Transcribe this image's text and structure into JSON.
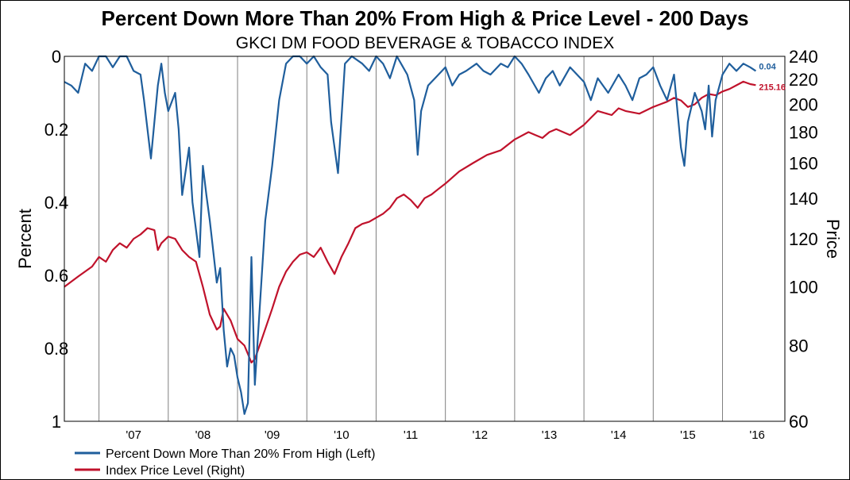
{
  "chart_data": {
    "type": "line",
    "title": "Percent Down More Than 20% From High & Price Level - 200 Days",
    "subtitle": "GKCI DM FOOD BEVERAGE & TOBACCO INDEX",
    "ylabel_left": "Percent",
    "ylabel_right": "Price",
    "left_axis": {
      "range": [
        0,
        1
      ],
      "inverted": true,
      "ticks": [
        "0",
        "0.2",
        "0.4",
        "0.6",
        "0.8",
        "1"
      ]
    },
    "right_axis": {
      "range": [
        60,
        240
      ],
      "scale": "log",
      "ticks": [
        "60",
        "80",
        "100",
        "120",
        "140",
        "160",
        "180",
        "200",
        "220",
        "240"
      ]
    },
    "x_ticks": [
      "'07",
      "'08",
      "'09",
      "'10",
      "'11",
      "'12",
      "'13",
      "'14",
      "'15",
      "'16"
    ],
    "x_range": [
      2006.5,
      2016.9
    ],
    "grid": {
      "vertical": true,
      "horizontal": false
    },
    "legend_position": "bottom-left",
    "series": [
      {
        "name": "Percent Down More Than 20% From High (Left)",
        "axis": "left",
        "color": "#1f5e9c",
        "end_label": "0.04",
        "x": [
          2006.5,
          2006.6,
          2006.7,
          2006.8,
          2006.9,
          2007.0,
          2007.1,
          2007.2,
          2007.3,
          2007.4,
          2007.5,
          2007.6,
          2007.65,
          2007.75,
          2007.85,
          2007.9,
          2007.95,
          2008.0,
          2008.1,
          2008.15,
          2008.2,
          2008.3,
          2008.35,
          2008.45,
          2008.5,
          2008.55,
          2008.6,
          2008.7,
          2008.75,
          2008.8,
          2008.85,
          2008.9,
          2008.95,
          2009.0,
          2009.05,
          2009.1,
          2009.15,
          2009.2,
          2009.25,
          2009.3,
          2009.4,
          2009.5,
          2009.6,
          2009.7,
          2009.8,
          2009.9,
          2010.0,
          2010.1,
          2010.2,
          2010.3,
          2010.35,
          2010.45,
          2010.55,
          2010.65,
          2010.8,
          2010.9,
          2011.0,
          2011.1,
          2011.2,
          2011.3,
          2011.45,
          2011.55,
          2011.6,
          2011.65,
          2011.75,
          2011.85,
          2012.0,
          2012.1,
          2012.2,
          2012.3,
          2012.45,
          2012.55,
          2012.65,
          2012.8,
          2012.9,
          2013.0,
          2013.1,
          2013.2,
          2013.35,
          2013.45,
          2013.55,
          2013.65,
          2013.8,
          2013.9,
          2014.0,
          2014.1,
          2014.2,
          2014.35,
          2014.5,
          2014.6,
          2014.7,
          2014.8,
          2014.9,
          2015.0,
          2015.1,
          2015.2,
          2015.3,
          2015.35,
          2015.4,
          2015.45,
          2015.5,
          2015.6,
          2015.7,
          2015.75,
          2015.8,
          2015.85,
          2015.9,
          2016.0,
          2016.1,
          2016.2,
          2016.3,
          2016.4,
          2016.48
        ],
        "y": [
          0.07,
          0.08,
          0.1,
          0.02,
          0.04,
          0.0,
          0.0,
          0.03,
          0.0,
          0.0,
          0.04,
          0.05,
          0.12,
          0.28,
          0.08,
          0.02,
          0.1,
          0.15,
          0.1,
          0.2,
          0.38,
          0.25,
          0.4,
          0.55,
          0.3,
          0.38,
          0.45,
          0.62,
          0.58,
          0.75,
          0.85,
          0.8,
          0.82,
          0.88,
          0.92,
          0.98,
          0.95,
          0.55,
          0.9,
          0.75,
          0.45,
          0.3,
          0.12,
          0.02,
          0.0,
          0.0,
          0.02,
          0.0,
          0.03,
          0.05,
          0.18,
          0.32,
          0.02,
          0.0,
          0.02,
          0.04,
          0.0,
          0.02,
          0.06,
          0.0,
          0.05,
          0.12,
          0.27,
          0.15,
          0.08,
          0.06,
          0.03,
          0.08,
          0.05,
          0.04,
          0.02,
          0.04,
          0.05,
          0.02,
          0.03,
          0.0,
          0.02,
          0.05,
          0.1,
          0.06,
          0.04,
          0.08,
          0.03,
          0.05,
          0.07,
          0.12,
          0.06,
          0.1,
          0.05,
          0.08,
          0.12,
          0.06,
          0.05,
          0.03,
          0.08,
          0.12,
          0.05,
          0.15,
          0.25,
          0.3,
          0.18,
          0.1,
          0.15,
          0.2,
          0.08,
          0.22,
          0.12,
          0.05,
          0.02,
          0.04,
          0.02,
          0.03,
          0.04
        ]
      },
      {
        "name": "Index Price Level (Right)",
        "axis": "right",
        "color": "#c0122b",
        "end_label": "215.16",
        "x": [
          2006.5,
          2006.7,
          2006.9,
          2007.0,
          2007.1,
          2007.2,
          2007.3,
          2007.4,
          2007.5,
          2007.6,
          2007.7,
          2007.8,
          2007.85,
          2007.9,
          2008.0,
          2008.1,
          2008.2,
          2008.3,
          2008.4,
          2008.5,
          2008.6,
          2008.7,
          2008.75,
          2008.8,
          2008.9,
          2009.0,
          2009.1,
          2009.2,
          2009.25,
          2009.35,
          2009.5,
          2009.6,
          2009.7,
          2009.8,
          2009.9,
          2010.0,
          2010.1,
          2010.2,
          2010.3,
          2010.4,
          2010.5,
          2010.6,
          2010.7,
          2010.8,
          2010.9,
          2011.0,
          2011.1,
          2011.2,
          2011.3,
          2011.4,
          2011.5,
          2011.6,
          2011.7,
          2011.8,
          2011.9,
          2012.0,
          2012.2,
          2012.4,
          2012.6,
          2012.8,
          2013.0,
          2013.2,
          2013.3,
          2013.4,
          2013.5,
          2013.6,
          2013.8,
          2014.0,
          2014.1,
          2014.2,
          2014.4,
          2014.5,
          2014.6,
          2014.8,
          2015.0,
          2015.1,
          2015.2,
          2015.3,
          2015.4,
          2015.5,
          2015.6,
          2015.7,
          2015.8,
          2015.9,
          2016.0,
          2016.1,
          2016.2,
          2016.3,
          2016.4,
          2016.48
        ],
        "y": [
          100,
          104,
          108,
          112,
          110,
          115,
          118,
          116,
          120,
          122,
          125,
          124,
          115,
          118,
          121,
          120,
          115,
          112,
          110,
          100,
          90,
          85,
          86,
          92,
          88,
          82,
          80,
          75,
          76,
          82,
          92,
          100,
          106,
          110,
          113,
          114,
          112,
          116,
          110,
          105,
          112,
          118,
          125,
          127,
          128,
          130,
          132,
          135,
          140,
          142,
          139,
          135,
          140,
          142,
          145,
          148,
          155,
          160,
          165,
          168,
          175,
          180,
          178,
          176,
          180,
          182,
          178,
          185,
          190,
          195,
          192,
          197,
          195,
          193,
          198,
          200,
          202,
          205,
          203,
          198,
          200,
          205,
          208,
          207,
          210,
          212,
          215,
          218,
          216,
          215.16
        ]
      }
    ]
  }
}
